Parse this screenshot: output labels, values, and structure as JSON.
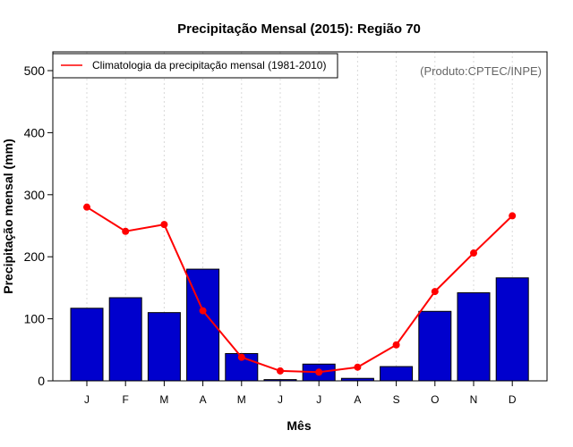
{
  "chart_data": {
    "type": "bar",
    "title": "Precipitação Mensal (2015): Região 70",
    "xlabel": "Mês",
    "ylabel": "Precipitação mensal (mm)",
    "ylim": [
      0,
      520
    ],
    "yticks": [
      0,
      100,
      200,
      300,
      400,
      500
    ],
    "categories": [
      "J",
      "F",
      "M",
      "A",
      "M",
      "J",
      "J",
      "A",
      "S",
      "O",
      "N",
      "D"
    ],
    "series": [
      {
        "name": "Precipitação mensal (2015)",
        "kind": "bar",
        "color": "#0000CD",
        "values": [
          117,
          134,
          110,
          180,
          44,
          2,
          27,
          4,
          23,
          112,
          142,
          166
        ]
      },
      {
        "name": "Climatologia da precipitação mensal (1981-2010)",
        "kind": "line",
        "color": "#FF0000",
        "values": [
          280,
          241,
          252,
          113,
          38,
          16,
          14,
          22,
          58,
          144,
          206,
          266
        ]
      }
    ],
    "grid": "vertical dotted",
    "legend": {
      "position": "top-left",
      "entries": [
        "Climatologia da precipitação mensal (1981-2010)"
      ]
    },
    "annotation": "(Produto:CPTEC/INPE)"
  }
}
